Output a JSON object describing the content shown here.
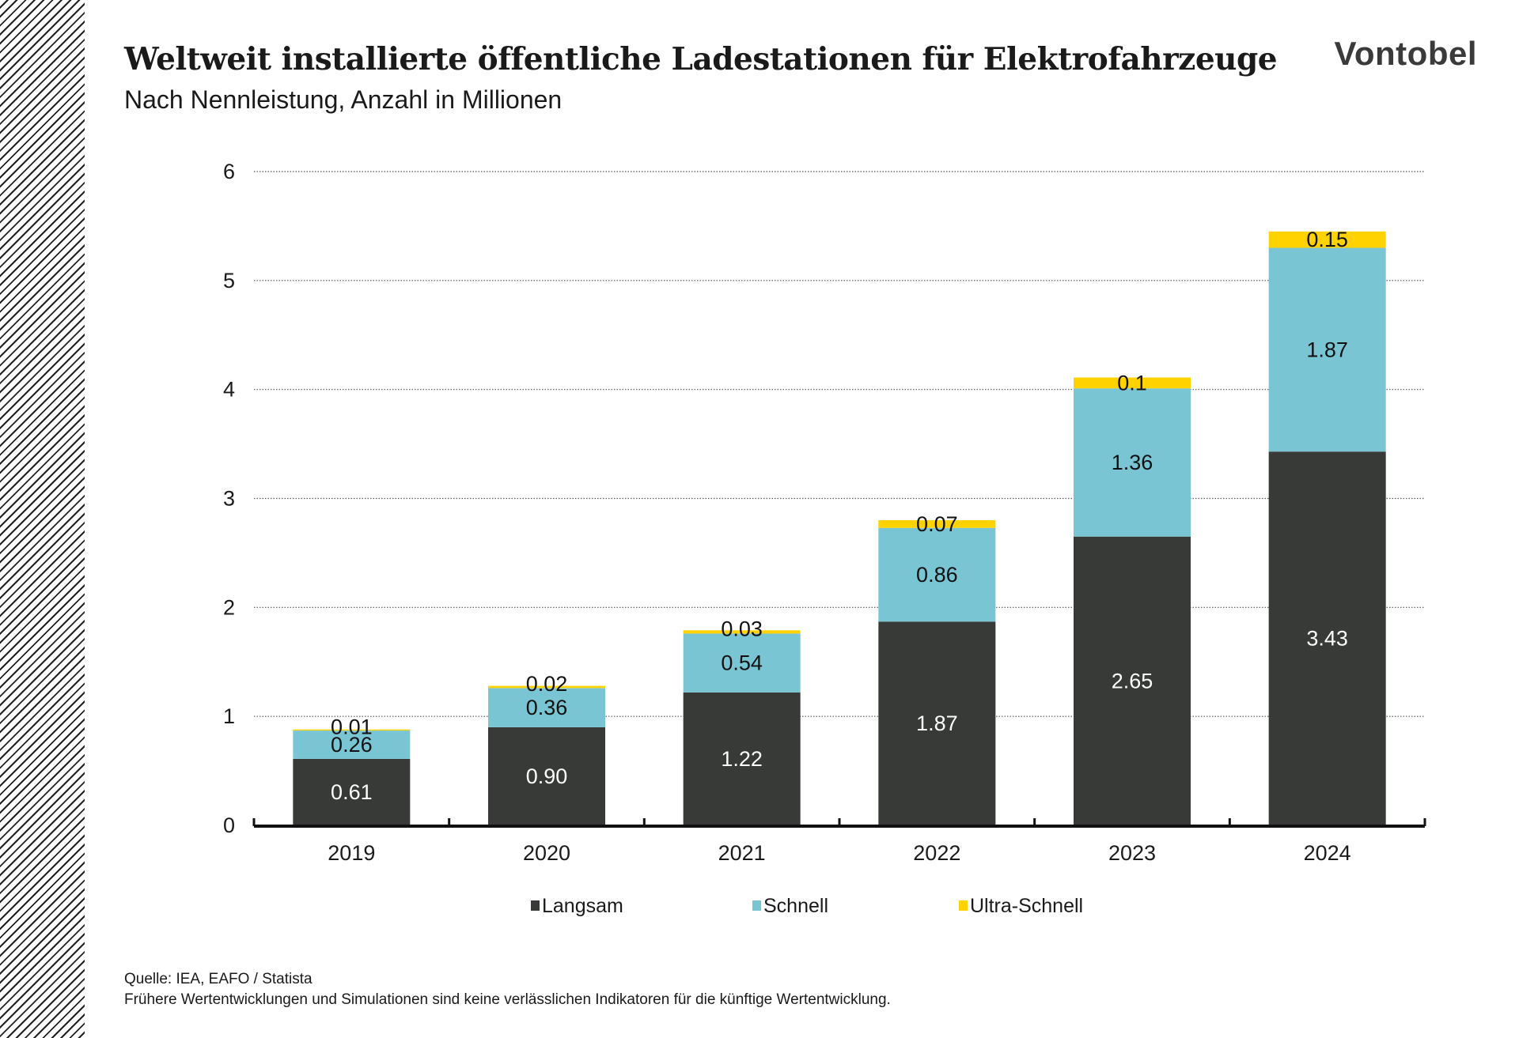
{
  "header": {
    "title": "Weltweit installierte öffentliche Ladestationen für Elektrofahrzeuge",
    "subtitle": "Nach Nennleistung, Anzahl in Millionen",
    "logo": "Vontobel"
  },
  "colors": {
    "Langsam": "#383a37",
    "Schnell": "#7ac5d4",
    "Ultra-Schnell": "#ffd200"
  },
  "chart_data": {
    "type": "bar",
    "stacked": true,
    "title": "Weltweit installierte öffentliche Ladestationen für Elektrofahrzeuge",
    "subtitle": "Nach Nennleistung, Anzahl in Millionen",
    "categories": [
      "2019",
      "2020",
      "2021",
      "2022",
      "2023",
      "2024"
    ],
    "series": [
      {
        "name": "Langsam",
        "values": [
          0.61,
          0.9,
          1.22,
          1.87,
          2.65,
          3.43
        ],
        "labels": [
          "0.61",
          "0.90",
          "1.22",
          "1.87",
          "2.65",
          "3.43"
        ]
      },
      {
        "name": "Schnell",
        "values": [
          0.26,
          0.36,
          0.54,
          0.86,
          1.36,
          1.87
        ],
        "labels": [
          "0.26",
          "0.36",
          "0.54",
          "0.86",
          "1.36",
          "1.87"
        ]
      },
      {
        "name": "Ultra-Schnell",
        "values": [
          0.01,
          0.02,
          0.03,
          0.07,
          0.1,
          0.15
        ],
        "labels": [
          "0.01",
          "0.02",
          "0.03",
          "0.07",
          "0.1",
          "0.15"
        ]
      }
    ],
    "ylim": [
      0,
      6
    ],
    "yticks": [
      "0",
      "1",
      "2",
      "3",
      "4",
      "5",
      "6"
    ],
    "grid": "horizontal dotted",
    "legend": "bottom",
    "xlabel": "",
    "ylabel": ""
  },
  "footer": {
    "source": "Quelle: IEA, EAFO / Statista",
    "disclaimer": "Frühere Wertentwicklungen und Simulationen sind keine verlässlichen Indikatoren für die künftige Wertentwicklung."
  }
}
